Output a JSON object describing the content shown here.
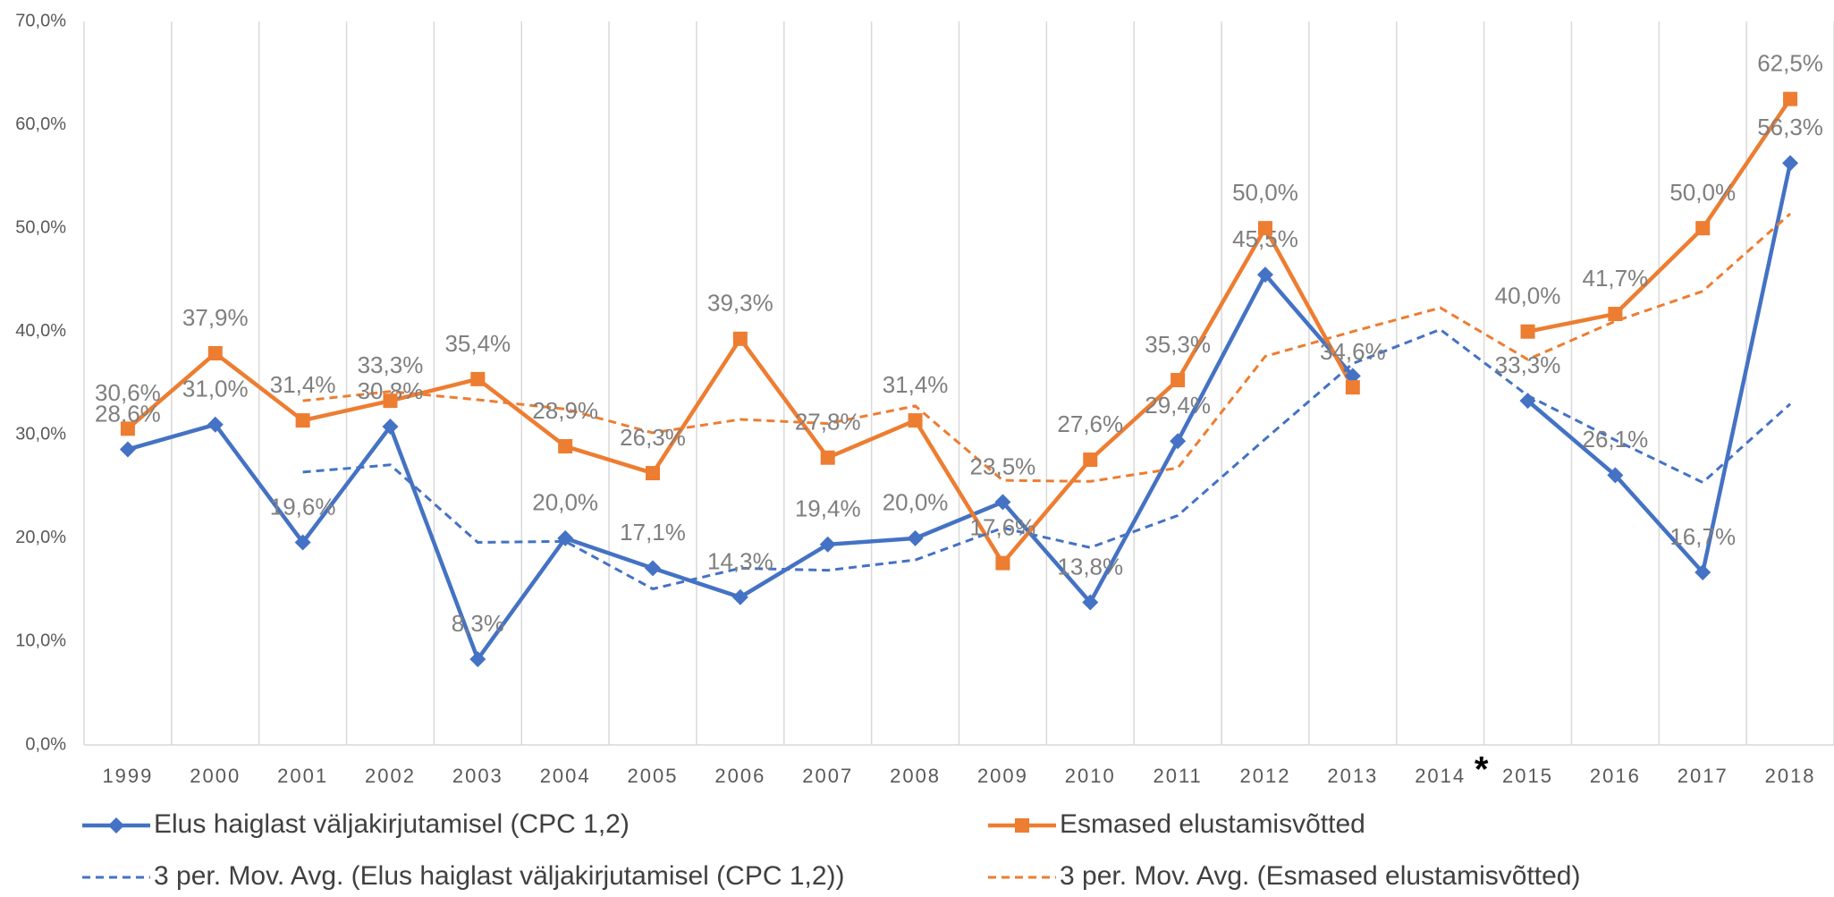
{
  "chart_data": {
    "type": "line",
    "categories": [
      "1999",
      "2000",
      "2001",
      "2002",
      "2003",
      "2004",
      "2005",
      "2006",
      "2007",
      "2008",
      "2009",
      "2010",
      "2011",
      "2012",
      "2013",
      "2014",
      "2015",
      "2016",
      "2017",
      "2018"
    ],
    "annotation": "*",
    "ylim": [
      0,
      70
    ],
    "yticks": [
      {
        "value": 0,
        "label": "0,0%"
      },
      {
        "value": 10,
        "label": "10,0%"
      },
      {
        "value": 20,
        "label": "20,0%"
      },
      {
        "value": 30,
        "label": "30,0%"
      },
      {
        "value": 40,
        "label": "40,0%"
      },
      {
        "value": 50,
        "label": "50,0%"
      },
      {
        "value": 60,
        "label": "60,0%"
      },
      {
        "value": 70,
        "label": "70,0%"
      }
    ],
    "series": [
      {
        "name": "Elus haiglast väljakirjutamisel (CPC 1,2)",
        "color": "#4472c4",
        "marker": "diamond",
        "dash": false,
        "values": [
          28.6,
          31.0,
          19.6,
          30.8,
          8.3,
          20.0,
          17.1,
          14.3,
          19.4,
          20.0,
          23.5,
          13.8,
          29.4,
          45.5,
          35.7,
          null,
          33.3,
          26.1,
          16.7,
          56.3
        ],
        "value_labels": [
          "28,6%",
          "31,0%",
          "19,6%",
          "30,8%",
          "8,3%",
          "20,0%",
          "17,1%",
          "14,3%",
          "19,4%",
          "20,0%",
          "23,5%",
          "13,8%",
          "29,4%",
          "45,5%",
          null,
          null,
          "33,3%",
          "26,1%",
          "16,7%",
          "56,3%"
        ]
      },
      {
        "name": "Esmased elustamisvõtted",
        "color": "#ed7d31",
        "marker": "square",
        "dash": false,
        "values": [
          30.6,
          37.9,
          31.4,
          33.3,
          35.4,
          28.9,
          26.3,
          39.3,
          27.8,
          31.4,
          17.6,
          27.6,
          35.3,
          50.0,
          34.6,
          null,
          40.0,
          41.7,
          50.0,
          62.5
        ],
        "value_labels": [
          "30,6%",
          "37,9%",
          "31,4%",
          "33,3%",
          "35,4%",
          "28,9%",
          "26,3%",
          "39,3%",
          "27,8%",
          "31,4%",
          "17,6%",
          "27,6%",
          "35,3%",
          "50,0%",
          "34,6%",
          null,
          "40,0%",
          "41,7%",
          "50,0%",
          "62,5%"
        ]
      },
      {
        "name": "3 per. Mov. Avg. (Elus haiglast väljakirjutamisel (CPC 1,2))",
        "color": "#4472c4",
        "marker": "none",
        "dash": true,
        "values": [
          null,
          null,
          26.4,
          27.1,
          19.6,
          19.7,
          15.1,
          17.1,
          16.9,
          17.9,
          21.0,
          19.1,
          22.2,
          29.6,
          36.9,
          40.2,
          33.8,
          29.5,
          25.4,
          33.0
        ]
      },
      {
        "name": "3 per. Mov. Avg. (Esmased elustamisvõtted)",
        "color": "#ed7d31",
        "marker": "none",
        "dash": true,
        "values": [
          null,
          null,
          33.3,
          34.2,
          33.4,
          32.5,
          30.2,
          31.5,
          31.1,
          32.8,
          25.6,
          25.5,
          26.8,
          37.6,
          40.0,
          42.3,
          37.3,
          41.0,
          43.9,
          51.4
        ]
      }
    ]
  }
}
